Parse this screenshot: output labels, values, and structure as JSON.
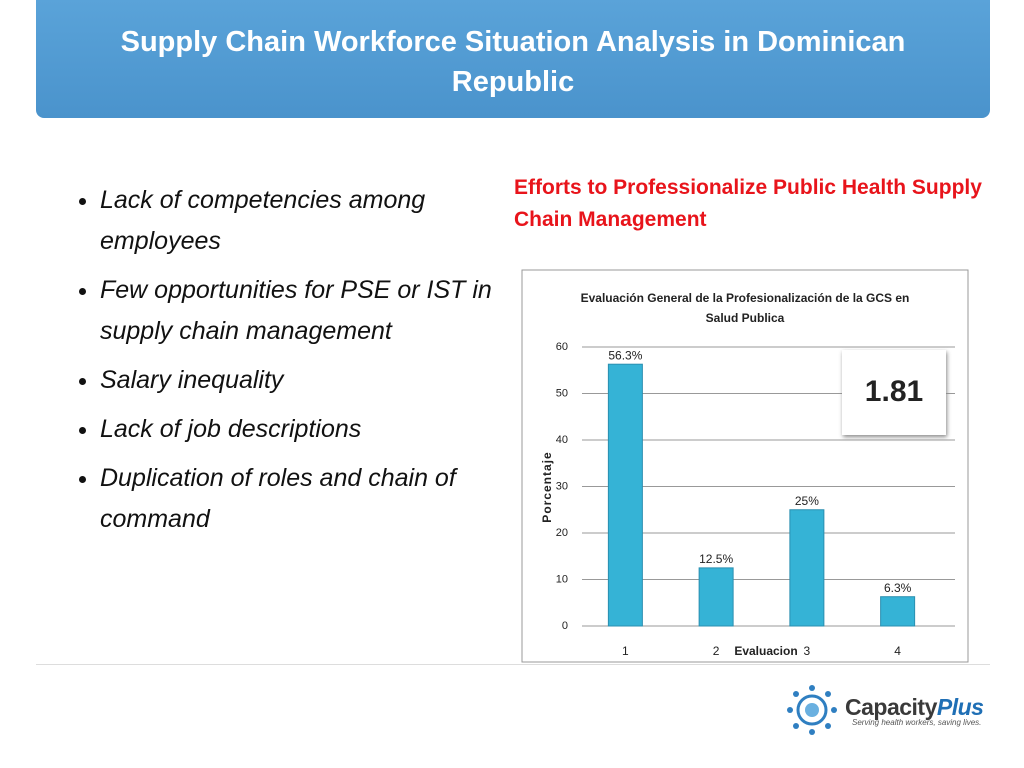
{
  "header": {
    "title": "Supply Chain Workforce Situation Analysis in Dominican Republic"
  },
  "bullets": [
    "Lack of competencies among employees",
    "Few opportunities for PSE or IST in supply chain management",
    "Salary inequality",
    "Lack of job descriptions",
    "Duplication of roles and chain of command"
  ],
  "chart_heading": "Efforts to Professionalize Public Health Supply Chain Management",
  "chart_data": {
    "type": "bar",
    "title": "Evaluación  General de la Profesionalización  de la GCS en Salud Publica",
    "x_label": "Evaluacion",
    "y_label": "Porcentaje",
    "categories": [
      "1",
      "2",
      "3",
      "4"
    ],
    "values": [
      56.3,
      12.5,
      25,
      6.3
    ],
    "value_labels": [
      "56.3%",
      "12.5%",
      "25%",
      "6.3%"
    ],
    "color": "#35b3d6",
    "ylim": [
      0,
      60
    ],
    "yticks": [
      0,
      10,
      20,
      30,
      40,
      50,
      60
    ],
    "grid": true,
    "annotation": "1.81"
  },
  "logo": {
    "name_main": "Capacity",
    "name_accent": "Plus",
    "tagline": "Serving health workers, saving lives."
  }
}
